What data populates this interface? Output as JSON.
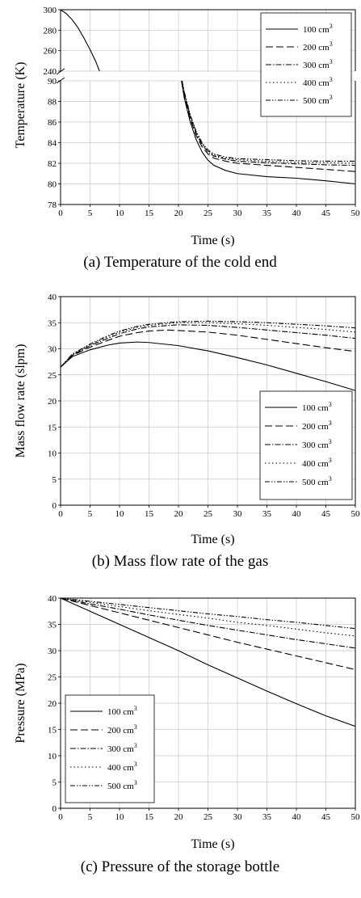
{
  "chart_data": [
    {
      "type": "line",
      "caption": "(a) Temperature of the cold end",
      "xlabel": "Time (s)",
      "ylabel": "Temperature (K)",
      "xlim": [
        0,
        50
      ],
      "x_ticks": [
        0,
        5,
        10,
        15,
        20,
        25,
        30,
        35,
        40,
        45,
        50
      ],
      "broken_axis": true,
      "upper_ylim": [
        240,
        300
      ],
      "upper_y_ticks": [
        240,
        260,
        280,
        300
      ],
      "lower_ylim": [
        78,
        90
      ],
      "lower_y_ticks": [
        78,
        80,
        82,
        84,
        86,
        88,
        90
      ],
      "grid": true,
      "legend": "top-right",
      "series": [
        {
          "name": "100 cm³",
          "style": "solid",
          "x": [
            0,
            1,
            2,
            3,
            4,
            5,
            6,
            6.6,
            20.5,
            21,
            22,
            23,
            24,
            25,
            26,
            28,
            30,
            35,
            40,
            45,
            50
          ],
          "y": [
            300,
            296,
            290,
            282,
            272,
            261,
            249,
            240,
            90,
            88.3,
            86,
            84.3,
            83.1,
            82.3,
            81.8,
            81.3,
            81.0,
            80.7,
            80.55,
            80.3,
            80.0
          ]
        },
        {
          "name": "200 cm³",
          "style": "long-dash",
          "x": [
            20.6,
            21,
            22,
            23,
            24,
            25,
            26,
            28,
            30,
            35,
            40,
            45,
            50
          ],
          "y": [
            90,
            88.6,
            86.3,
            84.7,
            83.6,
            82.9,
            82.5,
            82.2,
            82.0,
            81.8,
            81.6,
            81.4,
            81.2
          ]
        },
        {
          "name": "300 cm³",
          "style": "dash-dot",
          "x": [
            20.6,
            21,
            22,
            23,
            24,
            25,
            26,
            28,
            30,
            35,
            40,
            45,
            50
          ],
          "y": [
            90,
            88.7,
            86.5,
            84.9,
            83.8,
            83.1,
            82.7,
            82.4,
            82.2,
            82.05,
            81.95,
            81.85,
            81.8
          ]
        },
        {
          "name": "400 cm³",
          "style": "dotted",
          "x": [
            20.6,
            21,
            22,
            23,
            24,
            25,
            26,
            28,
            30,
            35,
            40,
            45,
            50
          ],
          "y": [
            90,
            88.8,
            86.6,
            85.0,
            83.9,
            83.2,
            82.8,
            82.5,
            82.35,
            82.2,
            82.1,
            82.05,
            82.0
          ]
        },
        {
          "name": "500 cm³",
          "style": "dash-dot-dot",
          "x": [
            20.6,
            21,
            22,
            23,
            24,
            25,
            26,
            28,
            30,
            35,
            40,
            45,
            50
          ],
          "y": [
            90,
            88.9,
            86.7,
            85.1,
            84.0,
            83.3,
            82.9,
            82.6,
            82.45,
            82.35,
            82.25,
            82.2,
            82.2
          ]
        }
      ],
      "legend_entries": [
        {
          "base": "100 cm",
          "sup": "3",
          "style": "solid"
        },
        {
          "base": "200 cm",
          "sup": "3",
          "style": "long-dash"
        },
        {
          "base": "300 cm",
          "sup": "3",
          "style": "dash-dot"
        },
        {
          "base": "400 cm",
          "sup": "3",
          "style": "dotted"
        },
        {
          "base": "500 cm",
          "sup": "3",
          "style": "dash-dot-dot"
        }
      ]
    },
    {
      "type": "line",
      "caption": "(b) Mass flow rate of the gas",
      "xlabel": "Time (s)",
      "ylabel": "Mass flow rate (slpm)",
      "xlim": [
        0,
        50
      ],
      "ylim": [
        0,
        40
      ],
      "x_ticks": [
        0,
        5,
        10,
        15,
        20,
        25,
        30,
        35,
        40,
        45,
        50
      ],
      "y_ticks": [
        0,
        5,
        10,
        15,
        20,
        25,
        30,
        35,
        40
      ],
      "grid": true,
      "legend": "bottom-right",
      "series": [
        {
          "name": "100 cm³",
          "style": "solid",
          "x": [
            0,
            2,
            5,
            8,
            10,
            13,
            15,
            20,
            25,
            30,
            35,
            40,
            45,
            50
          ],
          "y": [
            26.5,
            28.5,
            29.8,
            30.7,
            31.1,
            31.3,
            31.2,
            30.6,
            29.6,
            28.3,
            26.9,
            25.3,
            23.7,
            22.0
          ]
        },
        {
          "name": "200 cm³",
          "style": "long-dash",
          "x": [
            0,
            2,
            5,
            8,
            10,
            13,
            15,
            18,
            20,
            25,
            30,
            35,
            40,
            45,
            50
          ],
          "y": [
            26.5,
            28.7,
            30.3,
            31.6,
            32.4,
            33.1,
            33.4,
            33.6,
            33.5,
            33.2,
            32.6,
            31.8,
            31.0,
            30.2,
            29.5
          ]
        },
        {
          "name": "300 cm³",
          "style": "dash-dot",
          "x": [
            0,
            2,
            5,
            8,
            10,
            13,
            15,
            20,
            25,
            30,
            35,
            40,
            45,
            50
          ],
          "y": [
            26.5,
            28.8,
            30.6,
            32.0,
            32.9,
            33.8,
            34.2,
            34.6,
            34.5,
            34.1,
            33.6,
            33.1,
            32.6,
            32.0
          ]
        },
        {
          "name": "400 cm³",
          "style": "dotted",
          "x": [
            0,
            2,
            5,
            8,
            10,
            13,
            15,
            20,
            25,
            30,
            35,
            40,
            45,
            50
          ],
          "y": [
            26.5,
            28.9,
            30.8,
            32.3,
            33.2,
            34.1,
            34.5,
            35.0,
            35.0,
            34.8,
            34.5,
            34.1,
            33.7,
            33.2
          ]
        },
        {
          "name": "500 cm³",
          "style": "dash-dot-dot",
          "x": [
            0,
            2,
            5,
            8,
            10,
            13,
            15,
            20,
            25,
            30,
            35,
            40,
            45,
            50
          ],
          "y": [
            26.5,
            29.0,
            30.9,
            32.5,
            33.4,
            34.3,
            34.7,
            35.2,
            35.3,
            35.2,
            35.0,
            34.7,
            34.4,
            34.0
          ]
        }
      ],
      "legend_entries": [
        {
          "base": "100 cm",
          "sup": "3",
          "style": "solid"
        },
        {
          "base": "200 cm",
          "sup": "3",
          "style": "long-dash"
        },
        {
          "base": "300 cm",
          "sup": "3",
          "style": "dash-dot"
        },
        {
          "base": "400 cm",
          "sup": "3",
          "style": "dotted"
        },
        {
          "base": "500 cm",
          "sup": "3",
          "style": "dash-dot-dot"
        }
      ]
    },
    {
      "type": "line",
      "caption": "(c) Pressure of the storage bottle",
      "xlabel": "Time (s)",
      "ylabel": "Pressure (MPa)",
      "xlim": [
        0,
        50
      ],
      "ylim": [
        0,
        40
      ],
      "x_ticks": [
        0,
        5,
        10,
        15,
        20,
        25,
        30,
        35,
        40,
        45,
        50
      ],
      "y_ticks": [
        0,
        5,
        10,
        15,
        20,
        25,
        30,
        35,
        40
      ],
      "grid": true,
      "legend": "bottom-left",
      "series": [
        {
          "name": "100 cm³",
          "style": "solid",
          "x": [
            0,
            5,
            10,
            15,
            20,
            25,
            30,
            35,
            40,
            45,
            50
          ],
          "y": [
            40,
            37.5,
            35.0,
            32.5,
            30.0,
            27.3,
            24.8,
            22.3,
            19.9,
            17.6,
            15.6
          ]
        },
        {
          "name": "200 cm³",
          "style": "long-dash",
          "x": [
            0,
            5,
            10,
            15,
            20,
            25,
            30,
            35,
            40,
            45,
            50
          ],
          "y": [
            40,
            38.6,
            37.2,
            35.8,
            34.4,
            33.0,
            31.6,
            30.3,
            29.0,
            27.7,
            26.4
          ]
        },
        {
          "name": "300 cm³",
          "style": "dash-dot",
          "x": [
            0,
            5,
            10,
            15,
            20,
            25,
            30,
            35,
            40,
            45,
            50
          ],
          "y": [
            40,
            38.9,
            37.9,
            36.8,
            35.8,
            34.8,
            33.9,
            33.0,
            32.1,
            31.3,
            30.5
          ]
        },
        {
          "name": "400 cm³",
          "style": "dotted",
          "x": [
            0,
            5,
            10,
            15,
            20,
            25,
            30,
            35,
            40,
            45,
            50
          ],
          "y": [
            40,
            39.2,
            38.4,
            37.6,
            36.9,
            36.2,
            35.4,
            34.8,
            34.1,
            33.4,
            32.8
          ]
        },
        {
          "name": "500 cm³",
          "style": "dash-dot-dot",
          "x": [
            0,
            5,
            10,
            15,
            20,
            25,
            30,
            35,
            40,
            45,
            50
          ],
          "y": [
            40,
            39.4,
            38.8,
            38.2,
            37.6,
            37.0,
            36.5,
            35.9,
            35.4,
            34.8,
            34.2
          ]
        }
      ],
      "legend_entries": [
        {
          "base": "100 cm",
          "sup": "3",
          "style": "solid"
        },
        {
          "base": "200 cm",
          "sup": "3",
          "style": "long-dash"
        },
        {
          "base": "300 cm",
          "sup": "3",
          "style": "dash-dot"
        },
        {
          "base": "400 cm",
          "sup": "3",
          "style": "dotted"
        },
        {
          "base": "500 cm",
          "sup": "3",
          "style": "dash-dot-dot"
        }
      ]
    }
  ]
}
